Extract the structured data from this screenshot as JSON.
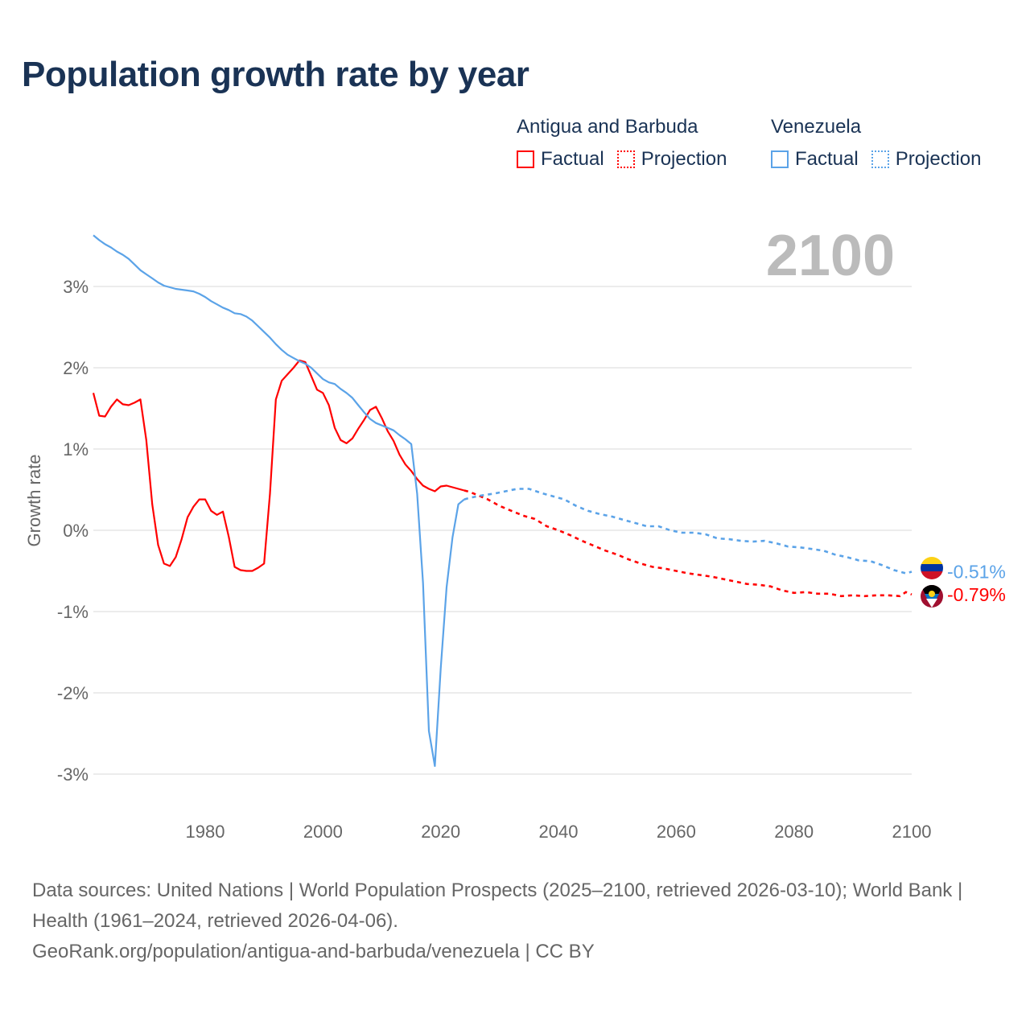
{
  "chart_data": {
    "type": "line",
    "title": "Population growth rate by year",
    "ylabel": "Growth rate",
    "xlabel": "",
    "xlim": [
      1961,
      2100
    ],
    "ylim": [
      -3.6,
      3.9
    ],
    "x_ticks": [
      1980,
      2000,
      2020,
      2040,
      2060,
      2080,
      2100
    ],
    "x_tick_labels": [
      "1980",
      "2000",
      "2020",
      "2040",
      "2060",
      "2080",
      "2100"
    ],
    "y_ticks": [
      3,
      2,
      1,
      0,
      -1,
      -2,
      -3
    ],
    "y_tick_labels": [
      "3%",
      "2%",
      "1%",
      "0%",
      "-1%",
      "-2%",
      "-3%"
    ],
    "grid": true,
    "year_label": "2100",
    "legend_position": "top-right",
    "series": [
      {
        "name": "Antigua and Barbuda",
        "color": "#ff0000",
        "end_label": "-0.79%",
        "flag": "antigua-and-barbuda",
        "factual": {
          "start": 1961,
          "values": [
            1.69,
            1.41,
            1.4,
            1.52,
            1.61,
            1.55,
            1.54,
            1.57,
            1.61,
            1.11,
            0.32,
            -0.18,
            -0.41,
            -0.44,
            -0.33,
            -0.11,
            0.16,
            0.29,
            0.38,
            0.38,
            0.24,
            0.19,
            0.23,
            -0.08,
            -0.45,
            -0.49,
            -0.5,
            -0.5,
            -0.46,
            -0.41,
            0.45,
            1.61,
            1.84,
            1.92,
            2.0,
            2.09,
            2.07,
            1.9,
            1.73,
            1.69,
            1.54,
            1.26,
            1.11,
            1.07,
            1.13,
            1.25,
            1.36,
            1.48,
            1.52,
            1.38,
            1.22,
            1.1,
            0.93,
            0.81,
            0.73,
            0.63,
            0.55,
            0.51,
            0.48,
            0.54,
            0.55,
            0.53,
            0.51,
            0.49
          ]
        },
        "projection": {
          "x": [
            2024,
            2025,
            2028,
            2030,
            2032,
            2034,
            2036,
            2038,
            2040,
            2042,
            2044,
            2046,
            2048,
            2050,
            2052,
            2054,
            2056,
            2058,
            2060,
            2062,
            2064,
            2066,
            2068,
            2070,
            2072,
            2074,
            2076,
            2078,
            2080,
            2082,
            2084,
            2086,
            2088,
            2090,
            2092,
            2094,
            2096,
            2098,
            2099,
            2100
          ],
          "values": [
            0.49,
            0.47,
            0.38,
            0.3,
            0.24,
            0.18,
            0.14,
            0.05,
            0.0,
            -0.06,
            -0.13,
            -0.19,
            -0.25,
            -0.3,
            -0.36,
            -0.41,
            -0.45,
            -0.47,
            -0.5,
            -0.53,
            -0.55,
            -0.57,
            -0.6,
            -0.63,
            -0.66,
            -0.67,
            -0.69,
            -0.74,
            -0.77,
            -0.76,
            -0.78,
            -0.78,
            -0.81,
            -0.8,
            -0.81,
            -0.8,
            -0.8,
            -0.81,
            -0.76,
            -0.79
          ]
        }
      },
      {
        "name": "Venezuela",
        "color": "#5ba3e8",
        "end_label": "-0.51%",
        "flag": "venezuela",
        "factual": {
          "start": 1961,
          "values": [
            3.63,
            3.57,
            3.52,
            3.48,
            3.43,
            3.39,
            3.34,
            3.27,
            3.2,
            3.15,
            3.1,
            3.05,
            3.01,
            2.99,
            2.97,
            2.96,
            2.95,
            2.94,
            2.91,
            2.87,
            2.82,
            2.78,
            2.74,
            2.71,
            2.67,
            2.66,
            2.63,
            2.58,
            2.51,
            2.44,
            2.37,
            2.29,
            2.22,
            2.16,
            2.12,
            2.08,
            2.05,
            2.0,
            1.93,
            1.86,
            1.82,
            1.8,
            1.74,
            1.69,
            1.63,
            1.54,
            1.45,
            1.37,
            1.32,
            1.29,
            1.26,
            1.23,
            1.17,
            1.12,
            1.06,
            0.45,
            -0.65,
            -2.47,
            -2.9,
            -1.7,
            -0.7,
            -0.09,
            0.32,
            0.38
          ]
        },
        "projection": {
          "x": [
            2024,
            2025,
            2027,
            2029,
            2031,
            2033,
            2035,
            2037,
            2039,
            2041,
            2043,
            2045,
            2047,
            2049,
            2051,
            2053,
            2055,
            2057,
            2059,
            2061,
            2063,
            2065,
            2067,
            2069,
            2071,
            2073,
            2075,
            2077,
            2079,
            2081,
            2083,
            2085,
            2087,
            2089,
            2091,
            2093,
            2095,
            2097,
            2099,
            2100
          ],
          "values": [
            0.38,
            0.4,
            0.43,
            0.45,
            0.48,
            0.51,
            0.51,
            0.46,
            0.42,
            0.38,
            0.3,
            0.24,
            0.2,
            0.17,
            0.13,
            0.09,
            0.05,
            0.05,
            0.0,
            -0.03,
            -0.03,
            -0.05,
            -0.1,
            -0.11,
            -0.13,
            -0.14,
            -0.13,
            -0.16,
            -0.2,
            -0.21,
            -0.23,
            -0.25,
            -0.3,
            -0.33,
            -0.37,
            -0.38,
            -0.43,
            -0.49,
            -0.53,
            -0.51
          ]
        }
      }
    ]
  },
  "legend": {
    "groups": [
      {
        "name": "Antigua and Barbuda",
        "factual": "Factual",
        "projection": "Projection",
        "color": "#ff0000"
      },
      {
        "name": "Venezuela",
        "factual": "Factual",
        "projection": "Projection",
        "color": "#5ba3e8"
      }
    ]
  },
  "footer": {
    "sources": "Data sources: United Nations | World Population Prospects (2025–2100, retrieved 2026-03-10); World Bank | Health (1961–2024, retrieved 2026-04-06).",
    "credit": "GeoRank.org/population/antigua-and-barbuda/venezuela | CC BY"
  }
}
